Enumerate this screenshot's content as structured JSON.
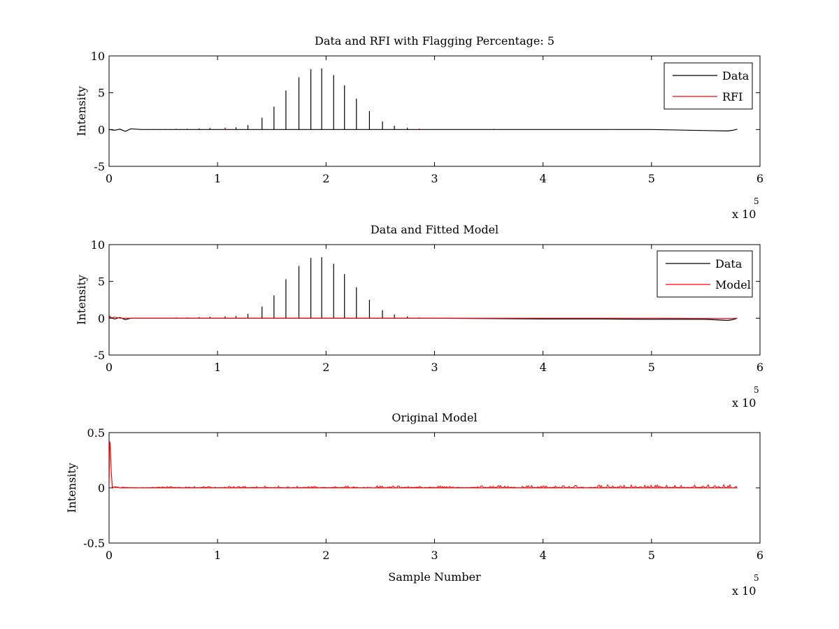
{
  "chart_data": [
    {
      "type": "line",
      "title": "Data and RFI with Flagging Percentage: 5",
      "xlabel": "",
      "ylabel": "Intensity",
      "xlim": [
        0,
        6
      ],
      "ylim": [
        -5,
        10
      ],
      "xticks": [
        0,
        1,
        2,
        3,
        4,
        5,
        6
      ],
      "xtick_labels": [
        "0",
        "1",
        "2",
        "3",
        "4",
        "5",
        "6"
      ],
      "yticks": [
        -5,
        0,
        5,
        10
      ],
      "ytick_labels": [
        "-5",
        "0",
        "5",
        "10"
      ],
      "x_multiplier": {
        "base": "x 10",
        "exponent": "5"
      },
      "grid": false,
      "legend": {
        "position": "top-right",
        "entries": [
          {
            "name": "Data",
            "color": "#000000"
          },
          {
            "name": "RFI",
            "color": "#ff0000"
          }
        ]
      },
      "series": [
        {
          "name": "Data",
          "color": "#000000",
          "baseline_x": [
            0,
            0.05,
            0.1,
            0.15,
            0.2,
            0.3,
            1,
            2,
            3,
            4,
            5,
            5.7,
            5.75,
            5.79
          ],
          "baseline_y": [
            0.0,
            -0.1,
            0.05,
            -0.25,
            0.1,
            0.0,
            0.0,
            0.0,
            0.0,
            0.0,
            0.0,
            -0.2,
            -0.1,
            0.05
          ],
          "spikes_x": [
            0.41,
            0.52,
            0.62,
            0.72,
            0.83,
            0.93,
            1.07,
            1.17,
            1.28,
            1.41,
            1.52,
            1.63,
            1.75,
            1.86,
            1.96,
            2.07,
            2.17,
            2.28,
            2.4,
            2.52,
            2.63,
            2.75,
            2.86
          ],
          "spikes_y": [
            0.05,
            0.05,
            0.1,
            0.1,
            0.15,
            0.2,
            0.25,
            0.3,
            0.6,
            1.6,
            3.1,
            5.3,
            7.1,
            8.2,
            8.3,
            7.4,
            6.0,
            4.2,
            2.5,
            1.1,
            0.5,
            0.25,
            0.1
          ]
        },
        {
          "name": "RFI",
          "color": "#ff0000",
          "spikes_x": [
            0.62,
            1.07,
            2.86,
            3.55,
            4.65,
            4.98
          ],
          "spikes_y": [
            0.1,
            0.15,
            0.12,
            0.1,
            0.08,
            0.06
          ]
        }
      ]
    },
    {
      "type": "line",
      "title": "Data and Fitted Model",
      "xlabel": "",
      "ylabel": "Intensity",
      "xlim": [
        0,
        6
      ],
      "ylim": [
        -5,
        10
      ],
      "xticks": [
        0,
        1,
        2,
        3,
        4,
        5,
        6
      ],
      "xtick_labels": [
        "0",
        "1",
        "2",
        "3",
        "4",
        "5",
        "6"
      ],
      "yticks": [
        -5,
        0,
        5,
        10
      ],
      "ytick_labels": [
        "-5",
        "0",
        "5",
        "10"
      ],
      "x_multiplier": {
        "base": "x 10",
        "exponent": "5"
      },
      "grid": false,
      "legend": {
        "position": "top-right",
        "entries": [
          {
            "name": "Data",
            "color": "#000000"
          },
          {
            "name": "Model",
            "color": "#ff0000"
          }
        ]
      },
      "series": [
        {
          "name": "Data",
          "color": "#000000",
          "baseline_x": [
            0,
            0.05,
            0.1,
            0.15,
            0.2,
            0.3,
            1,
            2,
            3,
            3.6,
            4,
            4.5,
            5,
            5.5,
            5.7,
            5.75,
            5.79
          ],
          "baseline_y": [
            0.2,
            -0.1,
            0.1,
            -0.2,
            0.0,
            0.0,
            0.0,
            0.0,
            0.0,
            -0.05,
            -0.1,
            -0.1,
            -0.15,
            -0.15,
            -0.3,
            -0.2,
            0.0
          ],
          "spikes_x": [
            0.41,
            0.52,
            0.62,
            0.72,
            0.83,
            0.93,
            1.07,
            1.17,
            1.28,
            1.41,
            1.52,
            1.63,
            1.75,
            1.86,
            1.96,
            2.07,
            2.17,
            2.28,
            2.4,
            2.52,
            2.63,
            2.75,
            2.86
          ],
          "spikes_y": [
            0.05,
            0.05,
            0.1,
            0.1,
            0.15,
            0.2,
            0.25,
            0.3,
            0.6,
            1.6,
            3.1,
            5.3,
            7.1,
            8.2,
            8.3,
            7.4,
            6.0,
            4.2,
            2.5,
            1.1,
            0.5,
            0.25,
            0.1
          ]
        },
        {
          "name": "Model",
          "color": "#ff0000",
          "x": [
            0,
            0.02,
            0.05,
            0.1,
            0.2,
            1,
            2,
            3,
            4,
            5,
            5.7,
            5.79
          ],
          "y": [
            0.35,
            0.05,
            0.15,
            0.0,
            0.0,
            0.0,
            0.0,
            0.0,
            0.0,
            0.0,
            -0.05,
            0.0
          ]
        }
      ]
    },
    {
      "type": "line",
      "title": "Original Model",
      "xlabel": "Sample Number",
      "ylabel": "Intensity",
      "xlim": [
        0,
        6
      ],
      "ylim": [
        -0.5,
        0.5
      ],
      "xticks": [
        0,
        1,
        2,
        3,
        4,
        5,
        6
      ],
      "xtick_labels": [
        "0",
        "1",
        "2",
        "3",
        "4",
        "5",
        "6"
      ],
      "yticks": [
        -0.5,
        0,
        0.5
      ],
      "ytick_labels": [
        "-0.5",
        "0",
        "0.5"
      ],
      "x_multiplier": {
        "base": "x 10",
        "exponent": "5"
      },
      "grid": false,
      "series": [
        {
          "name": "",
          "color": "#ff0000",
          "x": [
            0,
            0.005,
            0.01,
            0.02,
            0.03,
            0.05,
            0.1,
            5.79
          ],
          "y": [
            0.0,
            0.42,
            0.4,
            0.15,
            0.0,
            0.01,
            0.0,
            0.0
          ],
          "noise_range": [
            0.05,
            5.79
          ],
          "noise_amplitude_start": 0.01,
          "noise_amplitude_end": 0.03
        }
      ]
    }
  ]
}
